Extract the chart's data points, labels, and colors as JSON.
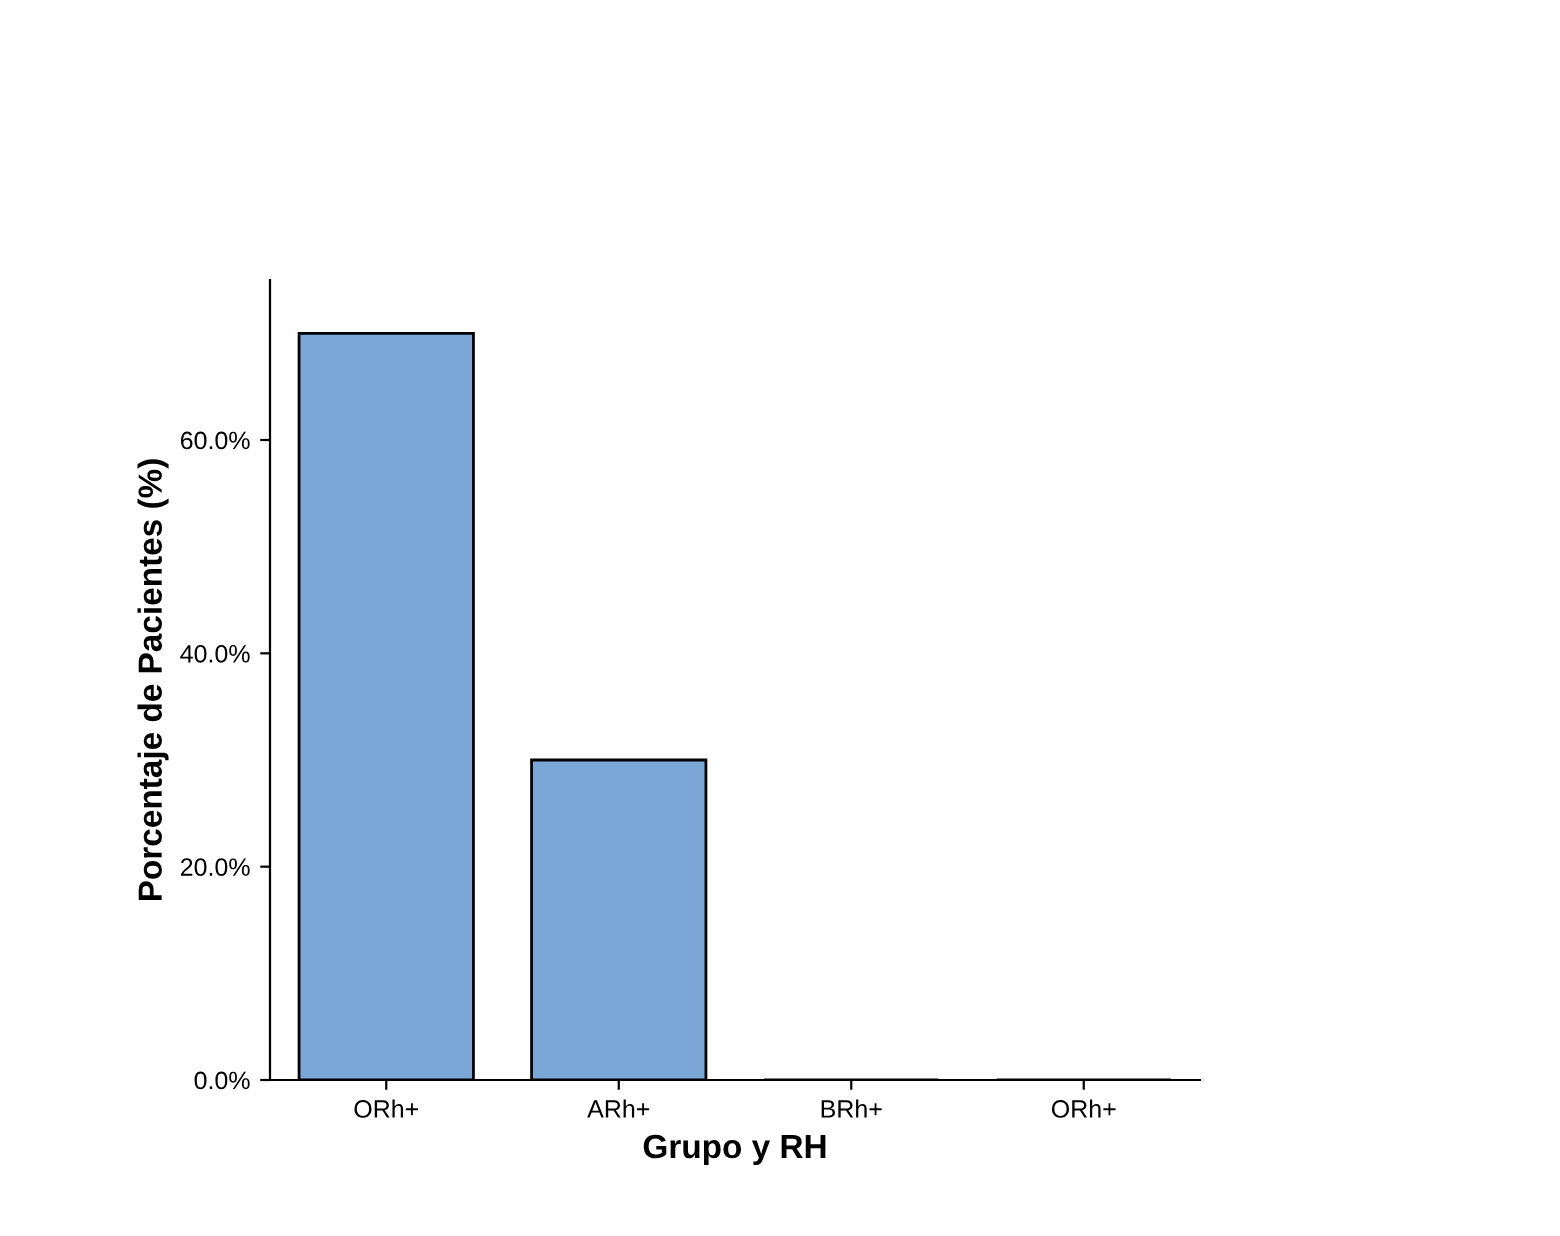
{
  "chart_data": {
    "type": "bar",
    "xlabel": "Grupo y RH",
    "ylabel": "Porcentaje de Pacientes (%)",
    "categories": [
      "ORh+",
      "ARh+",
      "BRh+",
      "ORh+"
    ],
    "values": [
      70,
      30,
      0,
      0
    ],
    "color": "#7aa7d6",
    "ylim": [
      0,
      75
    ],
    "yticks": [
      {
        "value": 0,
        "label": "0.0%"
      },
      {
        "value": 20,
        "label": "20.0%"
      },
      {
        "value": 40,
        "label": "40.0%"
      },
      {
        "value": 60,
        "label": "60.0%"
      }
    ],
    "grid": false
  }
}
